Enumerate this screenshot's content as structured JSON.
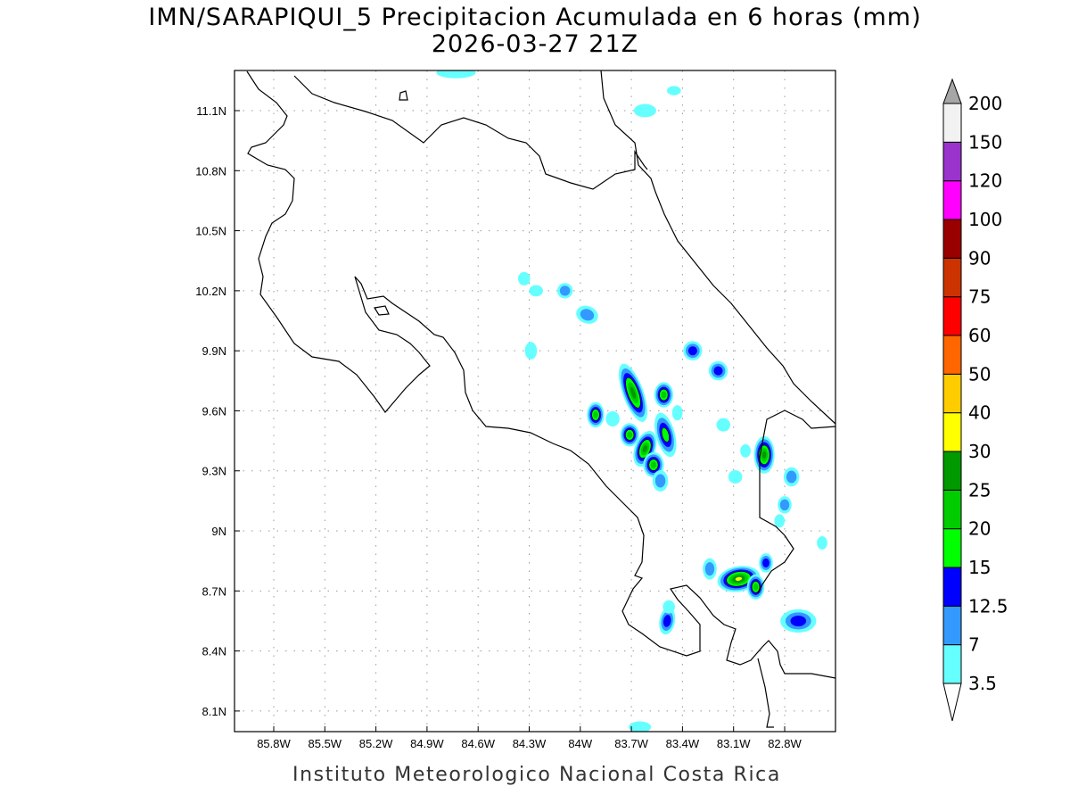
{
  "title": {
    "line1": "IMN/SARAPIQUI_5 Precipitacion Acumulada en 6 horas (mm)",
    "line2": "2026-03-27 21Z"
  },
  "footer": "Instituto Meteorologico Nacional Costa Rica",
  "chart_data": {
    "type": "heatmap",
    "title": "IMN/SARAPIQUI_5 Precipitacion Acumulada en 6 horas (mm)",
    "subtitle": "2026-03-27 21Z",
    "units": "mm",
    "xlim": [
      -86.03,
      -82.3
    ],
    "ylim": [
      7.99,
      11.3
    ],
    "x_ticks": [
      -85.8,
      -85.5,
      -85.2,
      -84.9,
      -84.6,
      -84.3,
      -84.0,
      -83.7,
      -83.4,
      -83.1,
      -82.8
    ],
    "x_tick_labels": [
      "85.8W",
      "85.5W",
      "85.2W",
      "84.9W",
      "84.6W",
      "84.3W",
      "84W",
      "83.7W",
      "83.4W",
      "83.1W",
      "82.8W"
    ],
    "y_ticks": [
      11.1,
      10.8,
      10.5,
      10.2,
      9.9,
      9.6,
      9.3,
      9.0,
      8.7,
      8.4,
      8.1
    ],
    "y_tick_labels": [
      "11.1N",
      "10.8N",
      "10.5N",
      "10.2N",
      "9.9N",
      "9.6N",
      "9.3N",
      "9N",
      "8.7N",
      "8.4N",
      "8.1N"
    ],
    "grid": true,
    "legend_placement": "right",
    "levels": [
      "3.5",
      "7",
      "12.5",
      "15",
      "20",
      "25",
      "30",
      "40",
      "50",
      "60",
      "75",
      "90",
      "100",
      "120",
      "150",
      "200"
    ],
    "colors": [
      "#66ffff",
      "#3399ff",
      "#0000ff",
      "#00ff00",
      "#00cc00",
      "#009900",
      "#ffff00",
      "#ffcc00",
      "#ff6600",
      "#ff0000",
      "#cc3300",
      "#990000",
      "#ff00ff",
      "#9933cc",
      "#f2f2f2"
    ],
    "above_color": "#a6a6a6",
    "below_color": "#ffffff",
    "cells": [
      {
        "lon": -83.69,
        "lat": 9.69,
        "max_level": 5,
        "rx": 0.045,
        "ry": 0.14,
        "rot": 20
      },
      {
        "lon": -83.51,
        "lat": 9.68,
        "max_level": 4,
        "rx": 0.04,
        "ry": 0.05,
        "rot": 0
      },
      {
        "lon": -83.91,
        "lat": 9.58,
        "max_level": 4,
        "rx": 0.035,
        "ry": 0.05,
        "rot": 0
      },
      {
        "lon": -83.71,
        "lat": 9.48,
        "max_level": 4,
        "rx": 0.04,
        "ry": 0.045,
        "rot": 0
      },
      {
        "lon": -83.5,
        "lat": 9.48,
        "max_level": 3,
        "rx": 0.04,
        "ry": 0.1,
        "rot": 15
      },
      {
        "lon": -83.62,
        "lat": 9.41,
        "max_level": 5,
        "rx": 0.045,
        "ry": 0.08,
        "rot": -20
      },
      {
        "lon": -83.57,
        "lat": 9.33,
        "max_level": 4,
        "rx": 0.045,
        "ry": 0.05,
        "rot": 0
      },
      {
        "lon": -83.53,
        "lat": 9.25,
        "max_level": 1,
        "rx": 0.03,
        "ry": 0.04,
        "rot": 0
      },
      {
        "lon": -83.34,
        "lat": 9.9,
        "max_level": 2,
        "rx": 0.04,
        "ry": 0.035,
        "rot": 0
      },
      {
        "lon": -83.19,
        "lat": 9.8,
        "max_level": 2,
        "rx": 0.04,
        "ry": 0.035,
        "rot": 30
      },
      {
        "lon": -83.96,
        "lat": 10.08,
        "max_level": 1,
        "rx": 0.05,
        "ry": 0.03,
        "rot": -20
      },
      {
        "lon": -84.09,
        "lat": 10.2,
        "max_level": 1,
        "rx": 0.03,
        "ry": 0.025,
        "rot": 0
      },
      {
        "lon": -84.33,
        "lat": 10.26,
        "max_level": 0,
        "rx": 0.02,
        "ry": 0.02,
        "rot": 0
      },
      {
        "lon": -84.26,
        "lat": 10.2,
        "max_level": 0,
        "rx": 0.025,
        "ry": 0.015,
        "rot": 0
      },
      {
        "lon": -84.29,
        "lat": 9.9,
        "max_level": 0,
        "rx": 0.02,
        "ry": 0.03,
        "rot": 0
      },
      {
        "lon": -82.92,
        "lat": 9.38,
        "max_level": 5,
        "rx": 0.045,
        "ry": 0.08,
        "rot": 0
      },
      {
        "lon": -83.07,
        "lat": 8.76,
        "max_level": 6,
        "rx": 0.11,
        "ry": 0.05,
        "rot": 10
      },
      {
        "lon": -82.97,
        "lat": 8.72,
        "max_level": 4,
        "rx": 0.035,
        "ry": 0.05,
        "rot": 0
      },
      {
        "lon": -83.24,
        "lat": 8.81,
        "max_level": 1,
        "rx": 0.025,
        "ry": 0.04,
        "rot": 0
      },
      {
        "lon": -82.91,
        "lat": 8.84,
        "max_level": 2,
        "rx": 0.025,
        "ry": 0.035,
        "rot": 0
      },
      {
        "lon": -83.49,
        "lat": 8.55,
        "max_level": 2,
        "rx": 0.03,
        "ry": 0.055,
        "rot": -10
      },
      {
        "lon": -82.72,
        "lat": 8.55,
        "max_level": 2,
        "rx": 0.09,
        "ry": 0.045,
        "rot": 0
      },
      {
        "lon": -82.76,
        "lat": 9.27,
        "max_level": 1,
        "rx": 0.03,
        "ry": 0.035,
        "rot": 0
      },
      {
        "lon": -82.8,
        "lat": 9.13,
        "max_level": 1,
        "rx": 0.025,
        "ry": 0.03,
        "rot": 0
      },
      {
        "lon": -83.16,
        "lat": 9.53,
        "max_level": 0,
        "rx": 0.025,
        "ry": 0.02,
        "rot": 0
      },
      {
        "lon": -83.03,
        "lat": 9.4,
        "max_level": 0,
        "rx": 0.015,
        "ry": 0.02,
        "rot": 0
      },
      {
        "lon": -83.09,
        "lat": 9.27,
        "max_level": 0,
        "rx": 0.025,
        "ry": 0.02,
        "rot": 0
      },
      {
        "lon": -83.81,
        "lat": 9.56,
        "max_level": 0,
        "rx": 0.025,
        "ry": 0.025,
        "rot": 0
      },
      {
        "lon": -83.48,
        "lat": 8.62,
        "max_level": 0,
        "rx": 0.02,
        "ry": 0.02,
        "rot": 0
      },
      {
        "lon": -83.43,
        "lat": 9.59,
        "max_level": 0,
        "rx": 0.015,
        "ry": 0.025,
        "rot": 0
      },
      {
        "lon": -83.62,
        "lat": 11.1,
        "max_level": 0,
        "rx": 0.05,
        "ry": 0.02,
        "rot": 0
      },
      {
        "lon": -83.45,
        "lat": 11.2,
        "max_level": 0,
        "rx": 0.025,
        "ry": 0.01,
        "rot": 0
      },
      {
        "lon": -84.73,
        "lat": 11.29,
        "max_level": 0,
        "rx": 0.1,
        "ry": 0.015,
        "rot": 0
      },
      {
        "lon": -82.58,
        "lat": 8.94,
        "max_level": 0,
        "rx": 0.015,
        "ry": 0.02,
        "rot": 0
      },
      {
        "lon": -82.83,
        "lat": 9.05,
        "max_level": 0,
        "rx": 0.015,
        "ry": 0.02,
        "rot": 0
      },
      {
        "lon": -83.65,
        "lat": 8.02,
        "max_level": 0,
        "rx": 0.05,
        "ry": 0.015,
        "rot": 0
      }
    ]
  }
}
